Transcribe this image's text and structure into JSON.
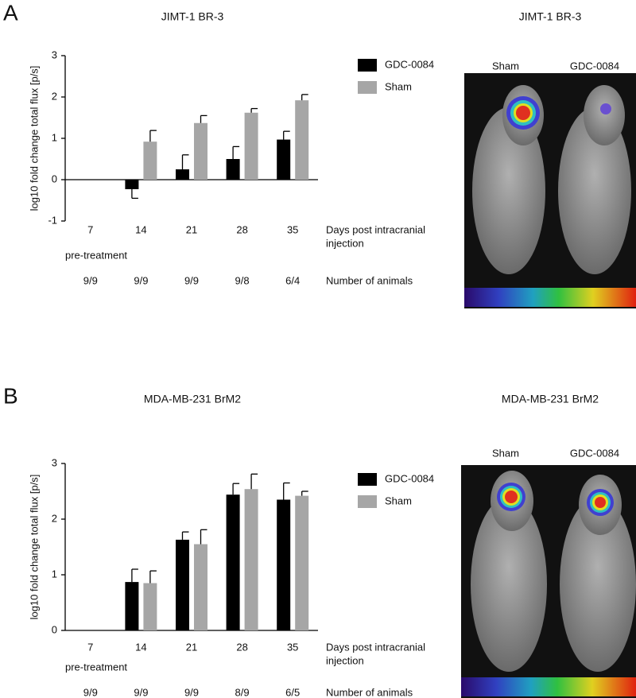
{
  "panels": [
    {
      "letter": "A",
      "image_title": "JIMT-1 BR-3",
      "image_labels": [
        "Sham",
        "GDC-0084"
      ]
    },
    {
      "letter": "B",
      "image_title": "MDA-MB-231 BrM2",
      "image_labels": [
        "Sham",
        "GDC-0084"
      ]
    }
  ],
  "chart_data": [
    {
      "type": "bar",
      "title": "JIMT-1 BR-3",
      "y_label": "log10 fold change total flux [p/s]",
      "x_label": [
        "Days post intracranial",
        "injection"
      ],
      "categories": [
        "7",
        "14",
        "21",
        "28",
        "35"
      ],
      "category_note": "pre-treatment",
      "count_label": "Number of animals",
      "counts": [
        "9/9",
        "9/9",
        "9/9",
        "9/8",
        "6/4"
      ],
      "series": [
        {
          "name": "GDC-0084",
          "color": "#000000",
          "values": [
            null,
            -0.23,
            0.25,
            0.5,
            0.97
          ],
          "errors": [
            null,
            0.22,
            0.35,
            0.3,
            0.2
          ]
        },
        {
          "name": "Sham",
          "color": "#a6a6a6",
          "values": [
            null,
            0.92,
            1.37,
            1.62,
            1.92
          ],
          "errors": [
            null,
            0.27,
            0.18,
            0.1,
            0.14
          ]
        }
      ],
      "ylim": [
        -1,
        3
      ],
      "yticks": [
        -1,
        0,
        1,
        2,
        3
      ]
    },
    {
      "type": "bar",
      "title": "MDA-MB-231 BrM2",
      "y_label": "log10 fold change total flux [p/s]",
      "x_label": [
        "Days post intracranial",
        "injection"
      ],
      "categories": [
        "7",
        "14",
        "21",
        "28",
        "35"
      ],
      "category_note": "pre-treatment",
      "count_label": "Number of animals",
      "counts": [
        "9/9",
        "9/9",
        "9/9",
        "8/9",
        "6/5"
      ],
      "series": [
        {
          "name": "GDC-0084",
          "color": "#000000",
          "values": [
            null,
            0.87,
            1.63,
            2.44,
            2.35
          ],
          "errors": [
            null,
            0.23,
            0.14,
            0.2,
            0.3
          ]
        },
        {
          "name": "Sham",
          "color": "#a6a6a6",
          "values": [
            null,
            0.85,
            1.55,
            2.54,
            2.42
          ],
          "errors": [
            null,
            0.22,
            0.26,
            0.27,
            0.08
          ]
        }
      ],
      "ylim": [
        0,
        3
      ],
      "yticks": [
        0,
        1,
        2,
        3
      ]
    }
  ]
}
